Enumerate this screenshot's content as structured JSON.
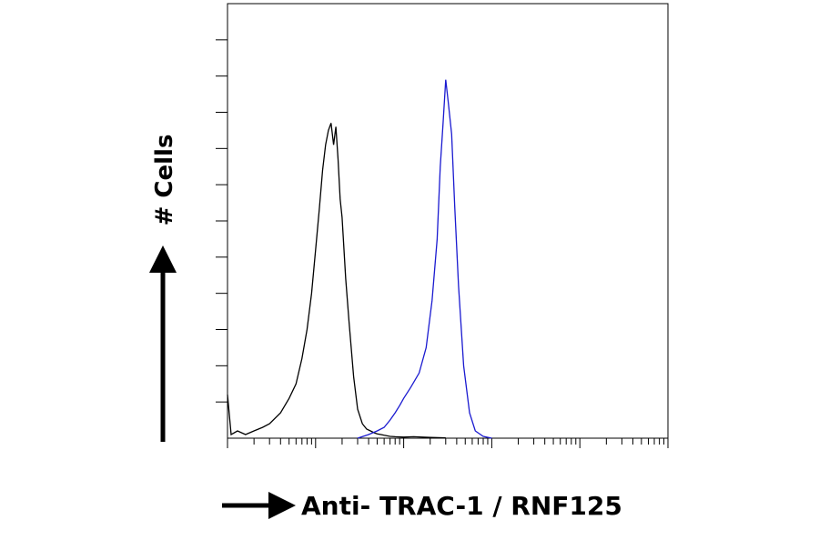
{
  "chart_data": {
    "type": "line",
    "subtype": "flow-cytometry-histogram",
    "title": "",
    "xlabel": "Anti- TRAC-1 / RNF125",
    "ylabel": "# Cells",
    "x_scale": "log",
    "xlim": [
      1,
      100000
    ],
    "ylim": [
      0,
      120
    ],
    "grid": false,
    "legend": "none",
    "x_major_ticks": [
      1,
      10,
      100,
      1000,
      10000,
      100000
    ],
    "y_ticks": [
      10,
      20,
      30,
      40,
      50,
      60,
      70,
      80,
      90,
      100,
      110
    ],
    "series": [
      {
        "color": "#000000",
        "x": [
          1,
          1.1,
          1.3,
          1.6,
          2,
          2.5,
          3,
          4,
          5,
          6,
          7,
          8,
          9,
          10,
          11,
          12,
          13,
          14,
          15,
          16,
          17,
          18,
          19,
          20,
          22,
          24,
          27,
          30,
          34,
          38,
          42,
          46,
          50,
          55,
          60,
          70,
          80,
          100,
          130,
          200,
          300
        ],
        "y": [
          12,
          1,
          2,
          1,
          2,
          3,
          4,
          7,
          11,
          15,
          22,
          30,
          40,
          52,
          63,
          74,
          81,
          85,
          87,
          81,
          86,
          77,
          66,
          61,
          44,
          32,
          17,
          8,
          4,
          2.5,
          2,
          1.5,
          1.2,
          1,
          0.8,
          0.5,
          0.4,
          0.3,
          0.4,
          0.2,
          0.1
        ]
      },
      {
        "color": "#1a1ad0",
        "x": [
          30,
          40,
          50,
          60,
          70,
          80,
          90,
          100,
          120,
          150,
          180,
          210,
          240,
          260,
          280,
          300,
          320,
          350,
          380,
          420,
          480,
          560,
          650,
          800,
          1000
        ],
        "y": [
          0,
          1,
          2,
          3,
          5,
          7,
          9,
          11,
          14,
          18,
          25,
          38,
          55,
          75,
          87,
          99,
          93,
          84,
          64,
          42,
          20,
          7,
          2,
          0.5,
          0
        ]
      }
    ]
  }
}
